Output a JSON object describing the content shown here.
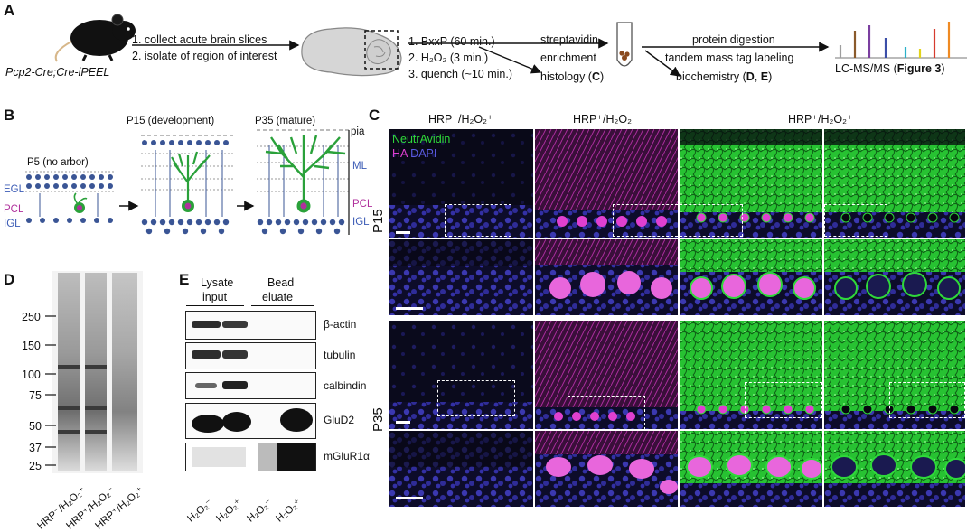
{
  "panels": {
    "A": "A",
    "B": "B",
    "C": "C",
    "D": "D",
    "E": "E"
  },
  "panel_a": {
    "mouse_line": "Pcp2-Cre;Cre-iPEEL",
    "steps1": [
      "1. collect acute brain slices",
      "2. isolate of region of interest"
    ],
    "steps2": [
      "1. BxxP (60 min.)",
      "2. H₂O₂ (3 min.)",
      "3. quench (~10 min.)"
    ],
    "streptavidin": "streptavidin",
    "enrichment": "enrichment",
    "histology_pre": "histology (",
    "histology_ref": "C",
    "histology_post": ")",
    "digestion": "protein digestion",
    "tmt": "tandem mass tag labeling",
    "biochem_pre": "biochemistry (",
    "biochem_ref1": "D",
    "biochem_sep": ", ",
    "biochem_ref2": "E",
    "biochem_post": ")",
    "lcms_pre": "LC-MS/MS (",
    "lcms_ref": "Figure 3",
    "lcms_post": ")",
    "peak_colors": [
      "#9e9e9e",
      "#8a5a2b",
      "#7b3fa0",
      "#3b4ea8",
      "#2bb0c9",
      "#e2d31b",
      "#d63b2e",
      "#ef8a23"
    ]
  },
  "panel_b": {
    "p5": "P5 (no arbor)",
    "p15": "P15 (development)",
    "p35": "P35 (mature)",
    "pia": "pia",
    "ml": "ML",
    "egl": "EGL",
    "pcl": "PCL",
    "igl": "IGL"
  },
  "panel_c": {
    "col_headers": [
      "HRP⁻/H₂O₂⁺",
      "HRP⁺/H₂O₂⁻",
      "HRP⁺/H₂O₂⁺"
    ],
    "legend_neutravidin": "NeutrAvidin",
    "legend_ha": "HA",
    "legend_dapi": "DAPI",
    "row_p15": "P15",
    "row_p35": "P35"
  },
  "panel_d": {
    "markers": [
      "250",
      "150",
      "100",
      "75",
      "50",
      "37",
      "25"
    ],
    "lanes": [
      "HRP⁻/H₂O₂⁺",
      "HRP⁺/H₂O₂⁻",
      "HRP⁺/H₂O₂⁺"
    ]
  },
  "panel_e": {
    "lysate": "Lysate",
    "input": "input",
    "bead": "Bead",
    "eluate": "eluate",
    "proteins": [
      "β-actin",
      "tubulin",
      "calbindin",
      "GluD2",
      "mGluR1α"
    ],
    "lanes": [
      "H₂O₂⁻",
      "H₂O₂⁺",
      "H₂O₂⁻",
      "H₂O₂⁺"
    ]
  },
  "colors": {
    "neutravidin": "#2fd93a",
    "ha": "#e040d0",
    "dapi": "#2a2aa8"
  }
}
